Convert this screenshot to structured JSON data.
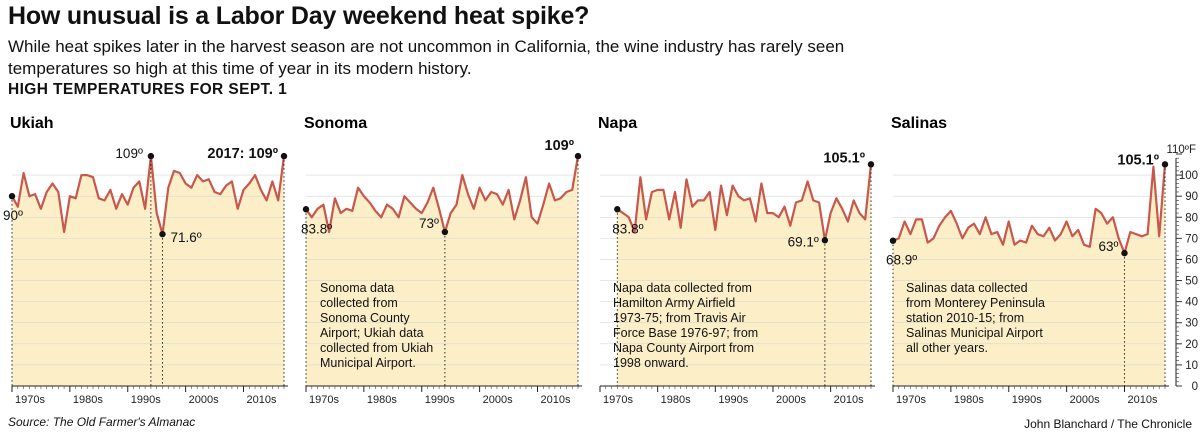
{
  "headline": "How unusual is a Labor Day weekend heat spike?",
  "dek": "While heat spikes later in the harvest season are not uncommon in California, the wine industry has rarely seen temperatures so high at this time of year in its modern history.",
  "subhead": "HIGH TEMPERATURES FOR SEPT. 1",
  "source": "Source: The Old Farmer's Almanac",
  "credit": "John Blanchard / The Chronicle",
  "colors": {
    "line": "#c8574c",
    "fill": "#fcefc7",
    "grid": "#d6d6d6",
    "dot": "#111111"
  },
  "y_axis": {
    "unit_label": "110ºF",
    "ticks": [
      "100",
      "90",
      "80",
      "70",
      "60",
      "50",
      "40",
      "30",
      "20",
      "10",
      "0"
    ]
  },
  "chart_data": [
    {
      "type": "area",
      "title": "Ukiah",
      "ylim": [
        0,
        110
      ],
      "x_tick_labels": [
        "1970s",
        "1980s",
        "1990s",
        "2000s",
        "2010s"
      ],
      "x": [
        1970,
        1971,
        1972,
        1973,
        1974,
        1975,
        1976,
        1977,
        1978,
        1979,
        1980,
        1981,
        1982,
        1983,
        1984,
        1985,
        1986,
        1987,
        1988,
        1989,
        1990,
        1991,
        1992,
        1993,
        1994,
        1995,
        1996,
        1997,
        1998,
        1999,
        2000,
        2001,
        2002,
        2003,
        2004,
        2005,
        2006,
        2007,
        2008,
        2009,
        2010,
        2011,
        2012,
        2013,
        2014,
        2015,
        2016,
        2017
      ],
      "y": [
        90,
        85,
        101,
        90,
        91,
        84,
        92,
        96,
        92,
        73,
        90,
        89,
        100,
        100,
        99,
        89,
        88,
        93,
        84,
        91,
        86,
        94,
        97,
        84,
        109,
        82,
        72,
        94,
        102,
        101,
        96,
        94,
        100,
        97,
        98,
        92,
        91,
        95,
        97,
        84,
        93,
        96,
        100,
        93,
        88,
        97,
        88,
        109
      ],
      "annotations": [
        {
          "label": "90º",
          "x": 1970,
          "y": 90,
          "dot": true
        },
        {
          "label": "109º",
          "x": 1994,
          "y": 109,
          "dot": true
        },
        {
          "label": "71.6º",
          "x": 1996,
          "y": 72,
          "dot": true
        },
        {
          "label": "2017: 109º",
          "x": 2017,
          "y": 109,
          "dot": true
        }
      ],
      "note": ""
    },
    {
      "type": "area",
      "title": "Sonoma",
      "ylim": [
        0,
        110
      ],
      "x_tick_labels": [
        "1970s",
        "1980s",
        "1990s",
        "2000s",
        "2010s"
      ],
      "x": [
        1970,
        1971,
        1972,
        1973,
        1974,
        1975,
        1976,
        1977,
        1978,
        1979,
        1980,
        1981,
        1982,
        1983,
        1984,
        1985,
        1986,
        1987,
        1988,
        1989,
        1990,
        1991,
        1992,
        1993,
        1994,
        1995,
        1996,
        1997,
        1998,
        1999,
        2000,
        2001,
        2002,
        2003,
        2004,
        2005,
        2006,
        2007,
        2008,
        2009,
        2010,
        2011,
        2012,
        2013,
        2014,
        2015,
        2016,
        2017
      ],
      "y": [
        83.8,
        80,
        84,
        86,
        73,
        89,
        82,
        84,
        83,
        94,
        90,
        87,
        83,
        80,
        86,
        84,
        80,
        90,
        87,
        84,
        82,
        87,
        94,
        84,
        73,
        82,
        86,
        100,
        91,
        84,
        94,
        88,
        92,
        91,
        86,
        93,
        79,
        88,
        99,
        80,
        77,
        86,
        96,
        88,
        89,
        92,
        93,
        109
      ],
      "annotations": [
        {
          "label": "83.8º",
          "x": 1970,
          "y": 83.8,
          "dot": true
        },
        {
          "label": "73º",
          "x": 1994,
          "y": 73,
          "dot": true
        },
        {
          "label": "109º",
          "x": 2017,
          "y": 109,
          "dot": true
        }
      ],
      "note": "Sonoma data\ncollected from\nSonoma County\nAirport; Ukiah data\ncollected from Ukiah\nMunicipal Airport."
    },
    {
      "type": "area",
      "title": "Napa",
      "ylim": [
        0,
        110
      ],
      "x_tick_labels": [
        "1970s",
        "1980s",
        "1990s",
        "2000s",
        "2010s"
      ],
      "x": [
        1973,
        1974,
        1975,
        1976,
        1977,
        1978,
        1979,
        1980,
        1981,
        1982,
        1983,
        1984,
        1985,
        1986,
        1987,
        1988,
        1989,
        1990,
        1991,
        1992,
        1993,
        1994,
        1995,
        1996,
        1997,
        1998,
        1999,
        2000,
        2001,
        2002,
        2003,
        2004,
        2005,
        2006,
        2007,
        2008,
        2009,
        2010,
        2011,
        2012,
        2013,
        2014,
        2015,
        2016,
        2017
      ],
      "y": [
        83.8,
        82,
        80,
        73,
        99,
        79,
        92,
        93,
        93,
        79,
        92,
        75,
        98,
        85,
        88,
        88,
        92,
        74,
        95,
        81,
        95,
        90,
        88,
        89,
        78,
        96,
        82,
        82,
        80,
        85,
        76,
        87,
        88,
        97,
        88,
        87,
        69.1,
        82,
        89,
        84,
        78,
        88,
        82,
        79,
        105.1
      ],
      "annotations": [
        {
          "label": "83.8º",
          "x": 1973,
          "y": 83.8,
          "dot": true
        },
        {
          "label": "69.1º",
          "x": 2009,
          "y": 69.1,
          "dot": true
        },
        {
          "label": "105.1º",
          "x": 2017,
          "y": 105.1,
          "dot": true
        }
      ],
      "note": "Napa data collected from\nHamilton Army Airfield\n1973-75; from Travis Air\nForce Base 1976-97; from\nNapa County Airport from\n1998 onward."
    },
    {
      "type": "area",
      "title": "Salinas",
      "ylim": [
        0,
        110
      ],
      "x_tick_labels": [
        "1970s",
        "1980s",
        "1990s",
        "2000s",
        "2010s"
      ],
      "x": [
        1970,
        1971,
        1972,
        1973,
        1974,
        1975,
        1976,
        1977,
        1978,
        1979,
        1980,
        1981,
        1982,
        1983,
        1984,
        1985,
        1986,
        1987,
        1988,
        1989,
        1990,
        1991,
        1992,
        1993,
        1994,
        1995,
        1996,
        1997,
        1998,
        1999,
        2000,
        2001,
        2002,
        2003,
        2004,
        2005,
        2006,
        2007,
        2008,
        2009,
        2010,
        2011,
        2012,
        2013,
        2014,
        2015,
        2016,
        2017
      ],
      "y": [
        68.9,
        70,
        78,
        72,
        79,
        79,
        68,
        70,
        76,
        80,
        83,
        77,
        70,
        75,
        77,
        72,
        80,
        72,
        73,
        67,
        78,
        67,
        69,
        68,
        76,
        72,
        71,
        75,
        69,
        72,
        78,
        71,
        74,
        67,
        66,
        84,
        82,
        77,
        80,
        70,
        63,
        73,
        72,
        71,
        72,
        104,
        71,
        105.1
      ],
      "annotations": [
        {
          "label": "68.9º",
          "x": 1970,
          "y": 68.9,
          "dot": true
        },
        {
          "label": "63º",
          "x": 2010,
          "y": 63,
          "dot": true
        },
        {
          "label": "105.1º",
          "x": 2017,
          "y": 105.1,
          "dot": true
        }
      ],
      "note": "Salinas data collected\nfrom Monterey Peninsula\nstation 2010-15; from\nSalinas Municipal Airport\nall other years."
    }
  ]
}
